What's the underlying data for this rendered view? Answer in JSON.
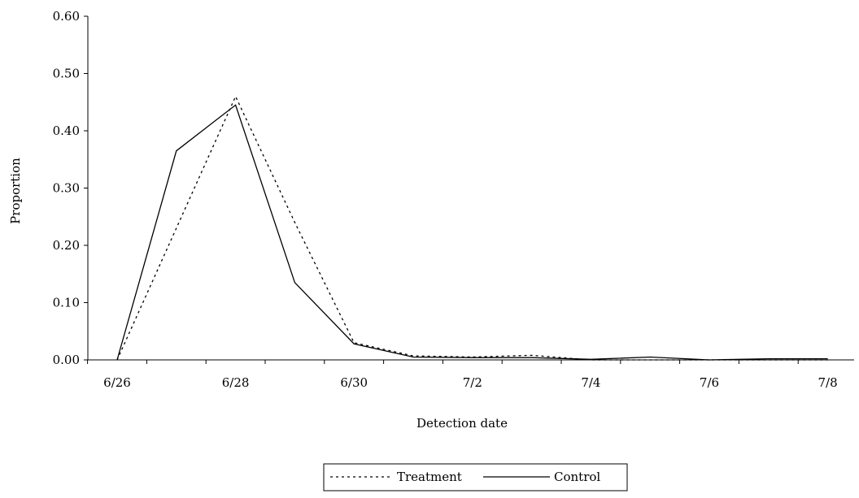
{
  "chart_data": {
    "type": "line",
    "xlabel": "Detection date",
    "ylabel": "Proportion",
    "x": [
      "6/26",
      "6/27",
      "6/28",
      "6/29",
      "6/30",
      "7/1",
      "7/2",
      "7/3",
      "7/4",
      "7/5",
      "7/6",
      "7/7",
      "7/8"
    ],
    "x_tick_labels": [
      "6/26",
      "6/28",
      "6/30",
      "7/2",
      "7/4",
      "7/6",
      "7/8"
    ],
    "y_tick_labels": [
      "0.00",
      "0.10",
      "0.20",
      "0.30",
      "0.40",
      "0.50",
      "0.60"
    ],
    "ylim": [
      0,
      0.6
    ],
    "grid": false,
    "legend_position": "bottom",
    "series": [
      {
        "name": "Treatment",
        "style": "dotted",
        "color": "#000000",
        "values": [
          0.0,
          0.23,
          0.46,
          0.24,
          0.03,
          0.007,
          0.005,
          0.008,
          0.0,
          0.0,
          0.0,
          0.0,
          0.0
        ]
      },
      {
        "name": "Control",
        "style": "solid",
        "color": "#000000",
        "values": [
          0.0,
          0.365,
          0.445,
          0.135,
          0.028,
          0.005,
          0.004,
          0.004,
          0.001,
          0.005,
          0.0,
          0.002,
          0.002
        ]
      }
    ]
  }
}
